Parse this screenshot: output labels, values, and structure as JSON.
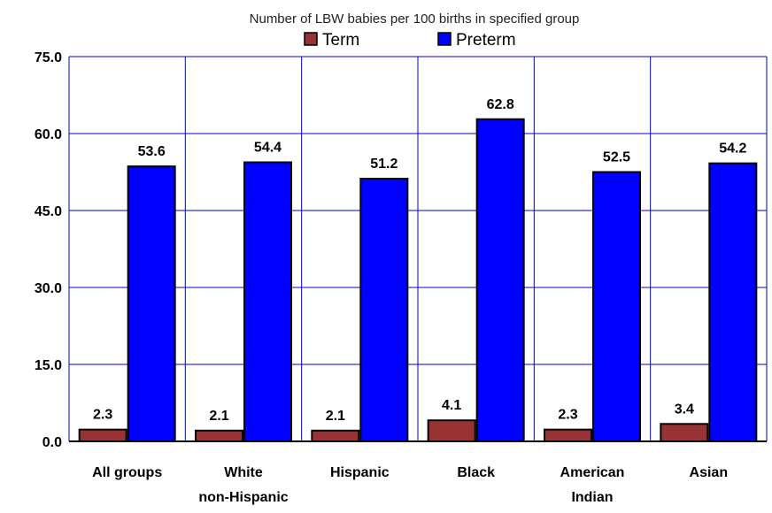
{
  "chart_data": {
    "type": "bar",
    "title": "Number of LBW babies per 100 births in specified group",
    "xlabel": "",
    "ylabel": "",
    "categories": [
      [
        "All groups"
      ],
      [
        "White",
        "non-Hispanic"
      ],
      [
        "Hispanic"
      ],
      [
        "Black"
      ],
      [
        "American",
        "Indian"
      ],
      [
        "Asian"
      ]
    ],
    "series": [
      {
        "name": "Term",
        "color": "#993333",
        "values": [
          2.3,
          2.1,
          2.1,
          4.1,
          2.3,
          3.4
        ],
        "labels": [
          "2.3",
          "2.1",
          "2.1",
          "4.1",
          "2.3",
          "3.4"
        ]
      },
      {
        "name": "Preterm",
        "color": "#0000FF",
        "values": [
          53.6,
          54.4,
          51.2,
          62.8,
          52.5,
          54.2
        ],
        "labels": [
          "53.6",
          "54.4",
          "51.2",
          "62.8",
          "52.5",
          "54.2"
        ]
      }
    ],
    "ylim": [
      0,
      75
    ],
    "yticks": [
      0,
      15,
      30,
      45,
      60,
      75
    ],
    "ytick_labels": [
      "0.0",
      "15.0",
      "30.0",
      "45.0",
      "60.0",
      "75.0"
    ],
    "grid": true,
    "gridlines_color": "#0000CC",
    "legend_position": "top-center"
  }
}
